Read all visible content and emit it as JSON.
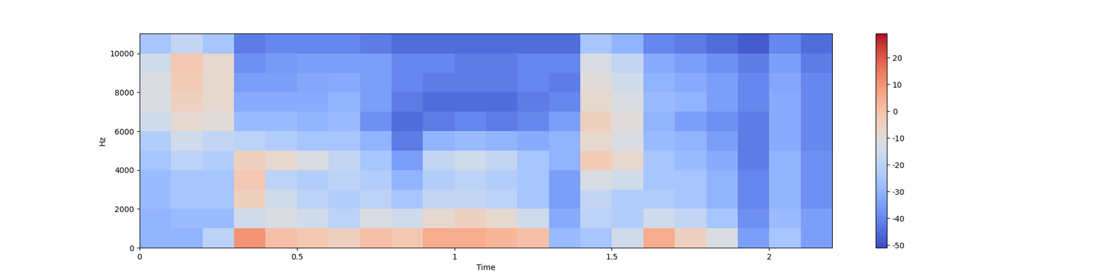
{
  "chart_data": {
    "type": "heatmap",
    "x_label": "Time",
    "y_label": "Hz",
    "xlim": [
      0,
      2.2
    ],
    "xticks": [
      0,
      0.5,
      1,
      1.5,
      2
    ],
    "ylim": [
      0,
      11025
    ],
    "yticks": [
      0,
      2000,
      4000,
      6000,
      8000,
      10000
    ],
    "x_bins": [
      0,
      0.1,
      0.2,
      0.3,
      0.4,
      0.5,
      0.6,
      0.7,
      0.8,
      0.9,
      1.0,
      1.1,
      1.2,
      1.3,
      1.4,
      1.5,
      1.6,
      1.7,
      1.8,
      1.9,
      2.0,
      2.1,
      2.2
    ],
    "y_bins": [
      0,
      1000,
      2000,
      3000,
      4000,
      5000,
      6000,
      7000,
      8000,
      9000,
      10000,
      11025
    ],
    "cells": [
      [
        -30,
        -30,
        -28,
        -28,
        -25,
        -22,
        -15,
        -12,
        -12,
        -15,
        -25
      ],
      [
        -30,
        -28,
        -25,
        -25,
        -20,
        -15,
        -8,
        -5,
        -3,
        -2,
        -18
      ],
      [
        -20,
        -28,
        -25,
        -25,
        -22,
        -18,
        -10,
        -8,
        -8,
        -8,
        -25
      ],
      [
        10,
        -15,
        -5,
        -2,
        -5,
        -20,
        -28,
        -32,
        -35,
        -38,
        -42
      ],
      [
        0,
        -12,
        -15,
        -20,
        -8,
        -22,
        -28,
        -32,
        -35,
        -36,
        -40
      ],
      [
        -2,
        -15,
        -20,
        -22,
        -12,
        -25,
        -30,
        -32,
        -33,
        -35,
        -40
      ],
      [
        -5,
        -20,
        -22,
        -20,
        -18,
        -25,
        -28,
        -30,
        -32,
        -35,
        -40
      ],
      [
        0,
        -12,
        -20,
        -22,
        -25,
        -30,
        -38,
        -35,
        -35,
        -35,
        -42
      ],
      [
        -2,
        -15,
        -25,
        -30,
        -35,
        -42,
        -45,
        -42,
        -40,
        -40,
        -45
      ],
      [
        5,
        -8,
        -18,
        -22,
        -18,
        -30,
        -42,
        -45,
        -42,
        -40,
        -45
      ],
      [
        5,
        -5,
        -18,
        -20,
        -15,
        -28,
        -40,
        -45,
        -42,
        -42,
        -45
      ],
      [
        3,
        -8,
        -20,
        -22,
        -18,
        -30,
        -42,
        -45,
        -42,
        -42,
        -45
      ],
      [
        0,
        -15,
        -25,
        -25,
        -25,
        -32,
        -40,
        -42,
        -40,
        -40,
        -45
      ],
      [
        -28,
        -32,
        -35,
        -35,
        -30,
        -30,
        -35,
        -40,
        -42,
        -40,
        -45
      ],
      [
        -25,
        -20,
        -18,
        -12,
        -3,
        -8,
        -5,
        -8,
        -10,
        -12,
        -25
      ],
      [
        -15,
        -22,
        -22,
        -15,
        -8,
        -12,
        -10,
        -12,
        -15,
        -18,
        -30
      ],
      [
        5,
        -15,
        -22,
        -25,
        -25,
        -28,
        -30,
        -28,
        -30,
        -32,
        -40
      ],
      [
        -5,
        -18,
        -25,
        -25,
        -28,
        -30,
        -35,
        -30,
        -32,
        -35,
        -42
      ],
      [
        -12,
        -25,
        -30,
        -30,
        -32,
        -35,
        -38,
        -35,
        -35,
        -38,
        -45
      ],
      [
        -35,
        -38,
        -40,
        -40,
        -42,
        -42,
        -42,
        -40,
        -40,
        -42,
        -48
      ],
      [
        -25,
        -28,
        -30,
        -30,
        -30,
        -32,
        -32,
        -32,
        -33,
        -35,
        -40
      ],
      [
        -35,
        -35,
        -38,
        -38,
        -38,
        -40,
        -40,
        -40,
        -40,
        -42,
        -45
      ]
    ],
    "colorbar_lim": [
      -51,
      29
    ],
    "colorbar_ticks": [
      -50,
      -40,
      -30,
      -20,
      -10,
      0,
      10,
      20
    ]
  }
}
